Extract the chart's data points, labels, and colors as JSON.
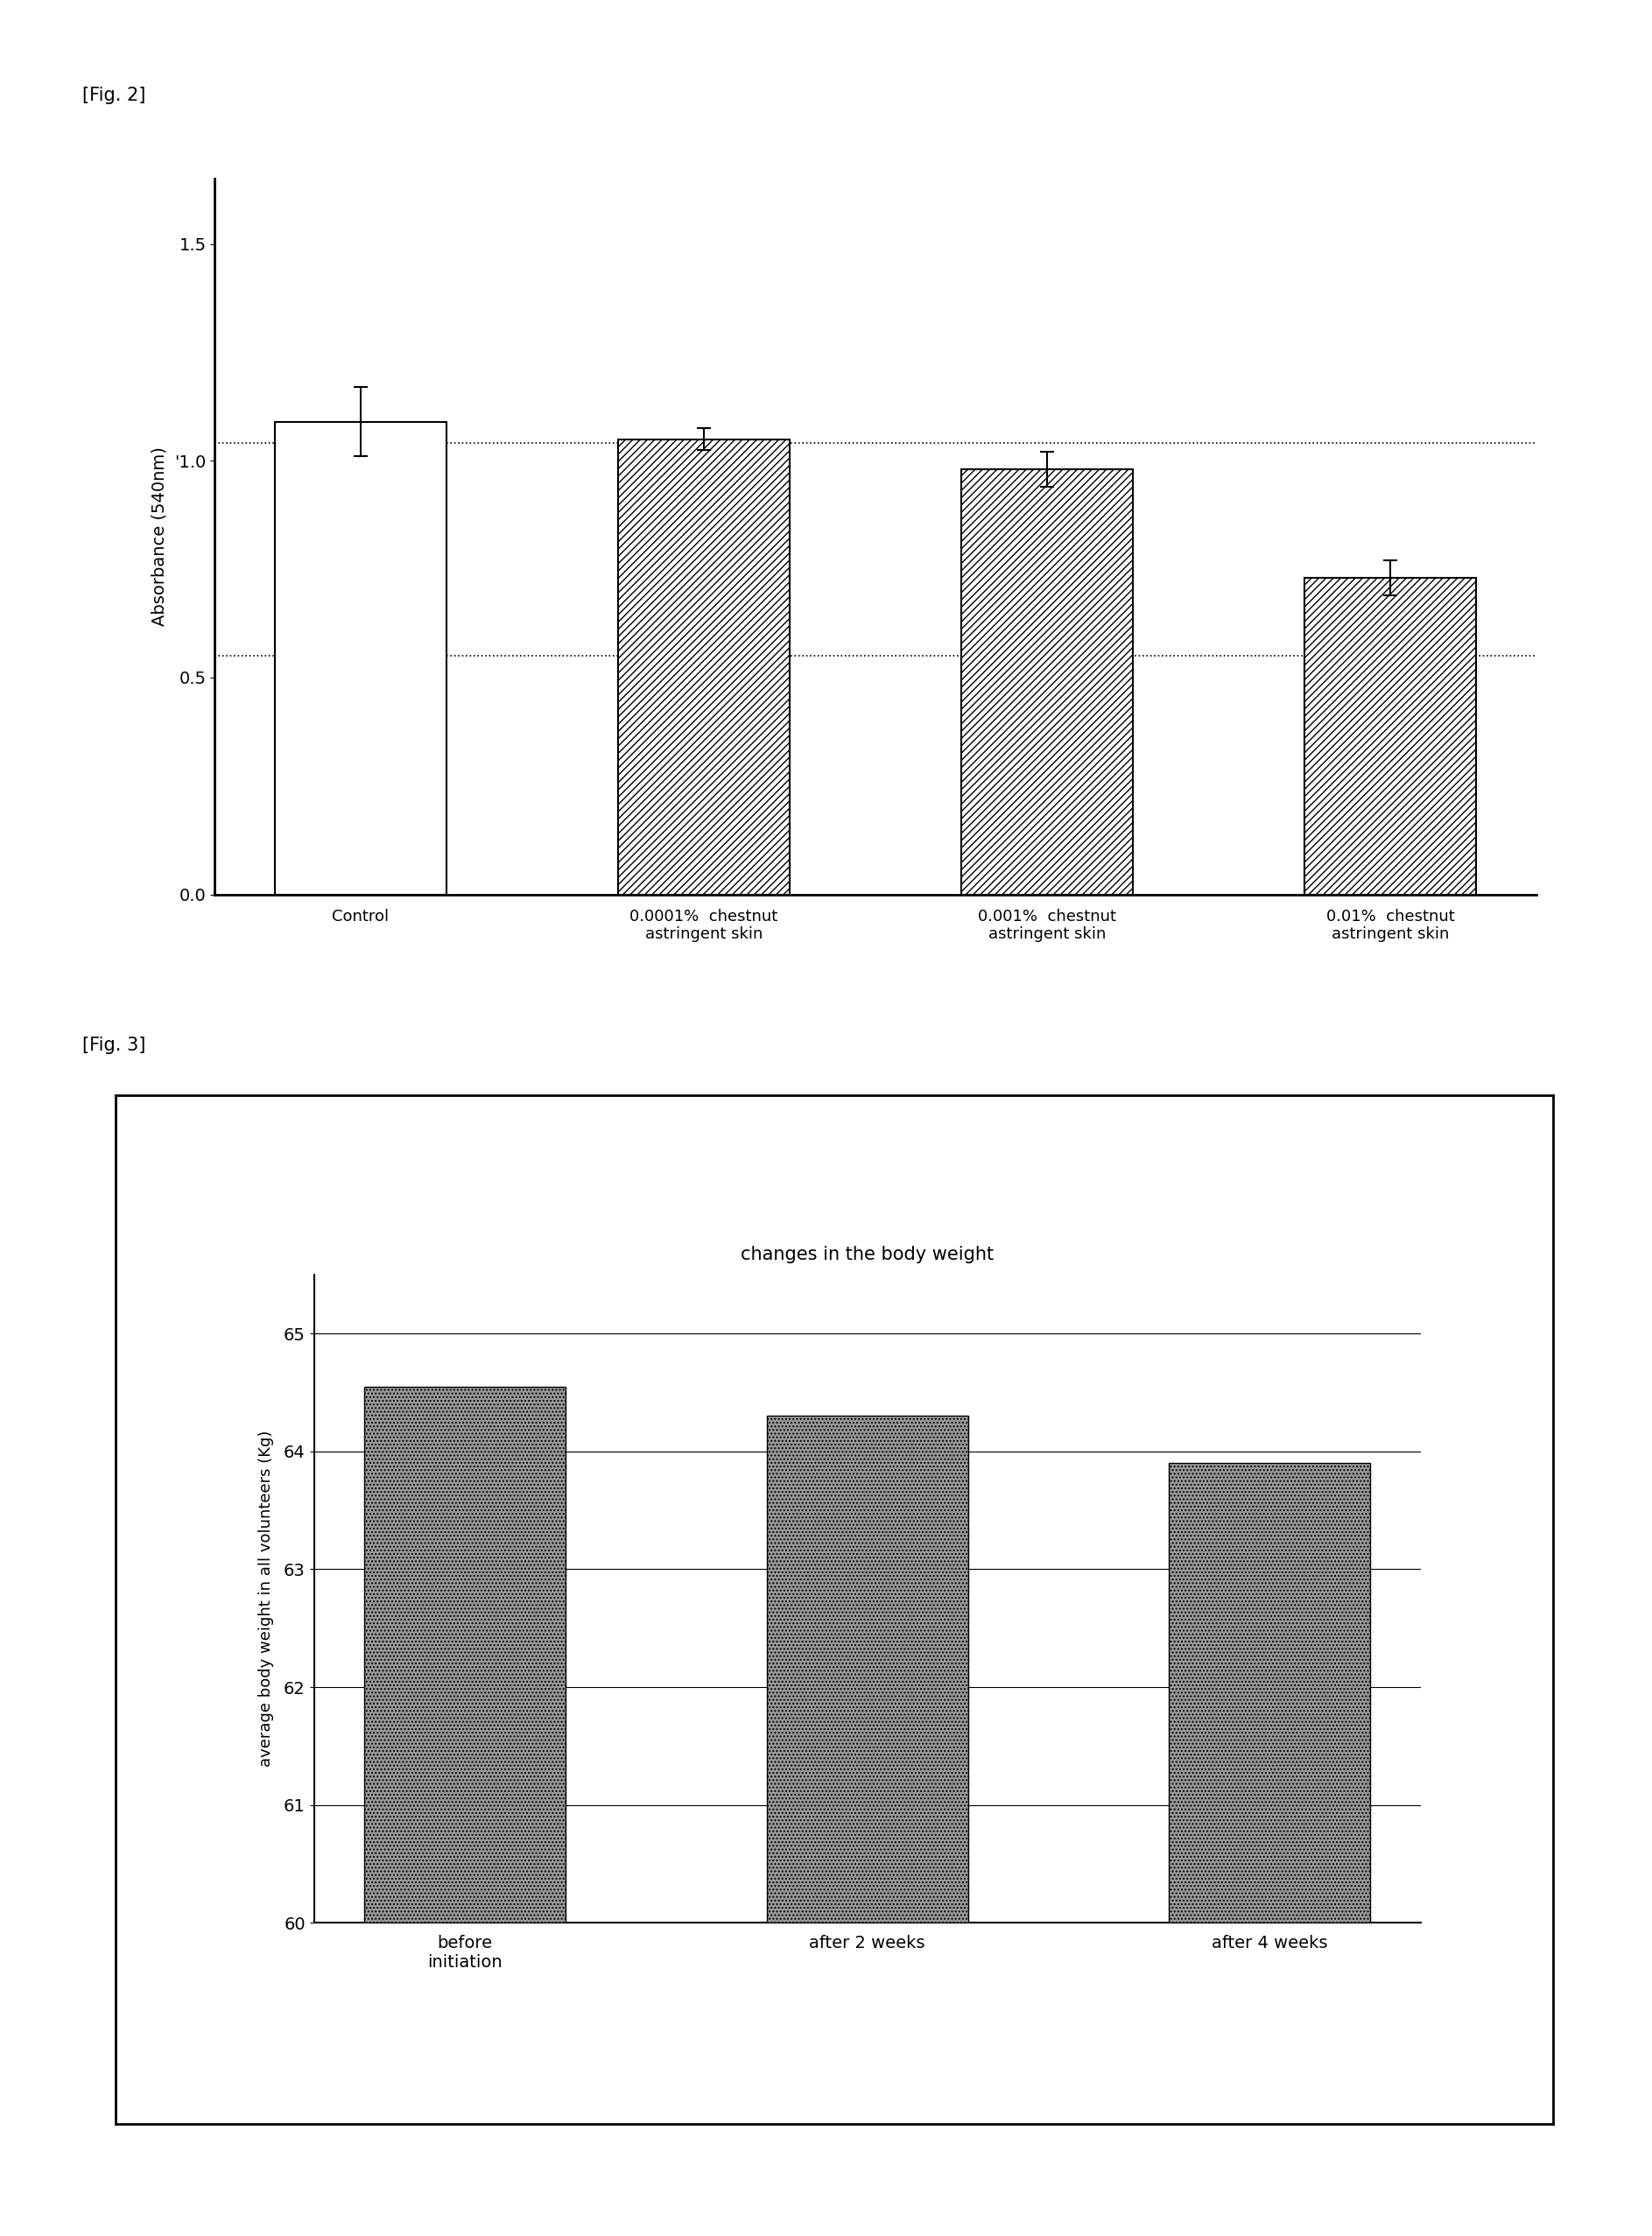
{
  "fig2": {
    "categories": [
      "Control",
      "0.0001%  chestnut\nastringent skin",
      "0.001%  chestnut\nastringent skin",
      "0.01%  chestnut\nastringent skin"
    ],
    "values": [
      1.09,
      1.05,
      0.98,
      0.73
    ],
    "errors": [
      0.08,
      0.025,
      0.04,
      0.04
    ],
    "ylabel": "Absorbance (540nm)",
    "yticks": [
      0.0,
      0.5,
      1.0,
      1.5
    ],
    "yticklabels": [
      "0.0",
      "0.5",
      "'1.0",
      "1.5"
    ],
    "ylim": [
      0.0,
      1.65
    ],
    "hlines": [
      1.04,
      0.55
    ],
    "label": "[Fig. 2]"
  },
  "fig3": {
    "categories": [
      "before\ninitiation",
      "after 2 weeks",
      "after 4 weeks"
    ],
    "values": [
      64.55,
      64.3,
      63.9
    ],
    "ylabel": "average body weight in all volunteers (Kg)",
    "title": "changes in the body weight",
    "yticks": [
      60,
      61,
      62,
      63,
      64,
      65
    ],
    "ylim": [
      60,
      65.5
    ],
    "label": "[Fig. 3]",
    "bar_color": "#aaaaaa"
  },
  "bg_color": "#ffffff",
  "text_color": "#000000"
}
